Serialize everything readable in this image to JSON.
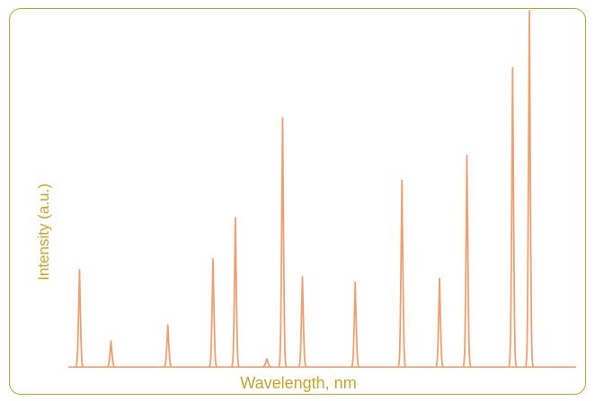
{
  "chart_data": {
    "type": "line",
    "title": "",
    "xlabel": "Wavelength, nm",
    "ylabel": "Intensity (a.u.)",
    "xlim": [
      0,
      1
    ],
    "ylim": [
      0,
      1
    ],
    "grid": false,
    "legend": "none",
    "baseline": 0.002,
    "series": [
      {
        "color": "#f0a070",
        "peaks": [
          {
            "x": 0.022,
            "y": 0.275
          },
          {
            "x": 0.084,
            "y": 0.075
          },
          {
            "x": 0.196,
            "y": 0.12
          },
          {
            "x": 0.285,
            "y": 0.305
          },
          {
            "x": 0.329,
            "y": 0.42
          },
          {
            "x": 0.391,
            "y": 0.025
          },
          {
            "x": 0.422,
            "y": 0.7
          },
          {
            "x": 0.461,
            "y": 0.255
          },
          {
            "x": 0.565,
            "y": 0.24
          },
          {
            "x": 0.657,
            "y": 0.525
          },
          {
            "x": 0.731,
            "y": 0.25
          },
          {
            "x": 0.785,
            "y": 0.595
          },
          {
            "x": 0.875,
            "y": 0.84
          },
          {
            "x": 0.908,
            "y": 1.0
          }
        ]
      }
    ]
  }
}
